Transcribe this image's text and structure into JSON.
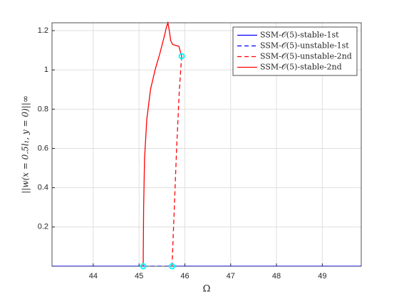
{
  "chart_data": {
    "type": "line",
    "xlabel": "Ω",
    "ylabel": "||w(x = 0.5l₁, y = 0)||∞",
    "xlim": [
      43.1,
      49.85
    ],
    "ylim": [
      0,
      1.24
    ],
    "xticks": [
      44,
      45,
      46,
      47,
      48,
      49
    ],
    "yticks": [
      0.2,
      0.4,
      0.6,
      0.8,
      1,
      1.2
    ],
    "grid": true,
    "legend": "top-right",
    "series": [
      {
        "name": "SSM-𝒪(5)-stable-1st",
        "color": "#0000ff",
        "dashed": false,
        "x": [
          43.1,
          45.09,
          null,
          45.72,
          49.85
        ],
        "values": [
          0,
          0,
          null,
          0,
          0
        ]
      },
      {
        "name": "SSM-𝒪(5)-unstable-1st",
        "color": "#0000ff",
        "dashed": true,
        "x": [
          45.09,
          45.72
        ],
        "values": [
          0,
          0
        ]
      },
      {
        "name": "SSM-𝒪(5)-unstable-2nd",
        "color": "#ff0000",
        "dashed": true,
        "x": [
          45.93,
          45.88,
          45.82,
          45.77,
          45.72
        ],
        "values": [
          1.07,
          0.9,
          0.6,
          0.3,
          0
        ]
      },
      {
        "name": "SSM-𝒪(5)-stable-2nd",
        "color": "#ff0000",
        "dashed": false,
        "x": [
          45.09,
          45.1,
          45.12,
          45.17,
          45.25,
          45.35,
          45.45,
          45.55,
          45.6,
          45.63,
          45.66,
          45.69,
          45.73,
          45.8,
          45.87,
          45.93
        ],
        "values": [
          0,
          0.3,
          0.55,
          0.75,
          0.9,
          1.0,
          1.08,
          1.17,
          1.22,
          1.24,
          1.2,
          1.15,
          1.13,
          1.125,
          1.12,
          1.07
        ]
      }
    ],
    "markers": {
      "color": "#00ffff",
      "x": [
        45.09,
        45.72,
        45.93
      ],
      "values": [
        0,
        0,
        1.07
      ]
    }
  }
}
